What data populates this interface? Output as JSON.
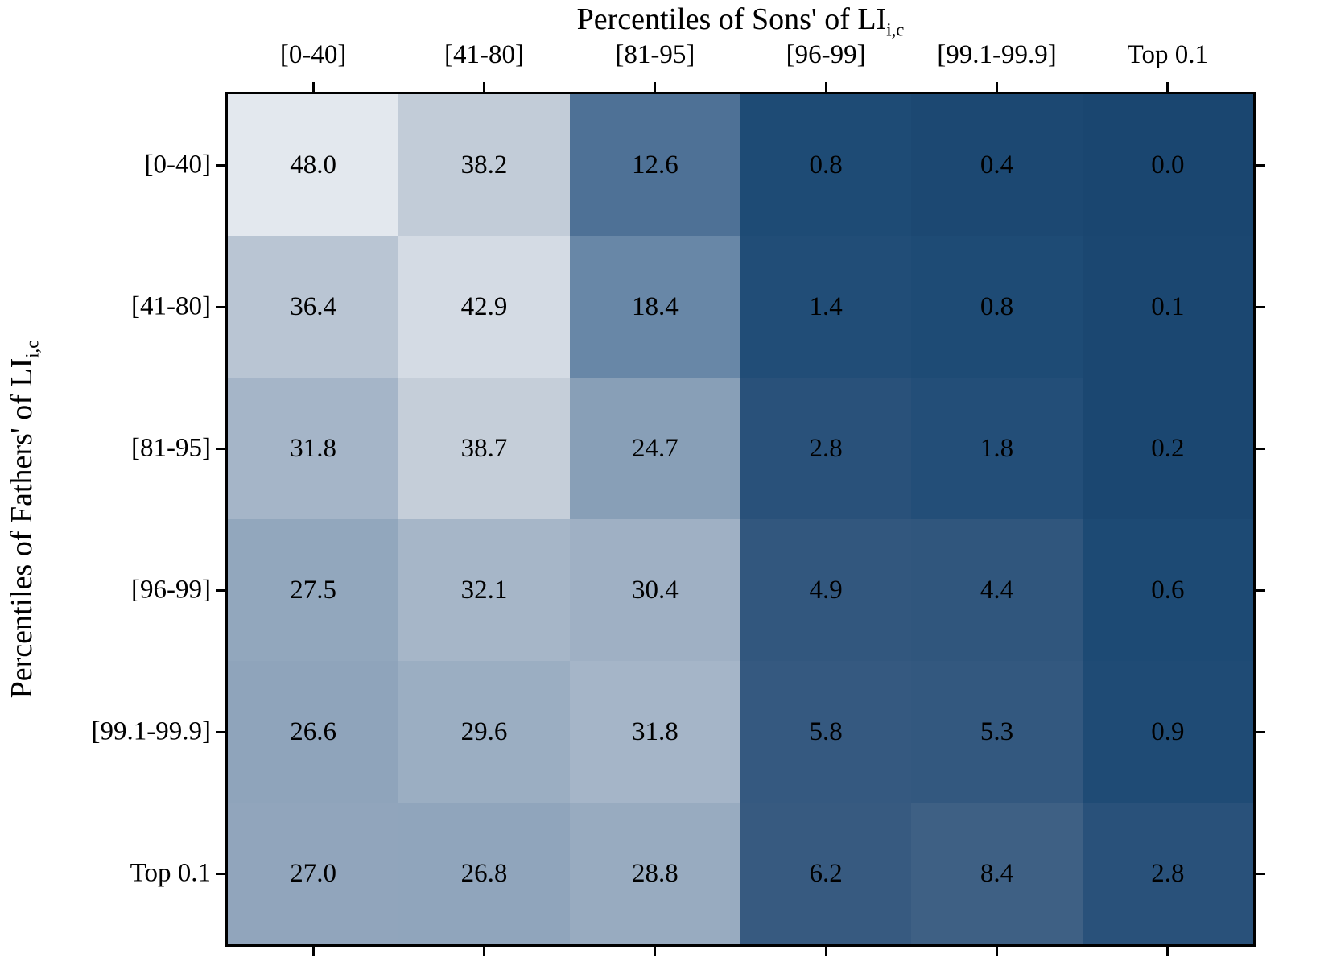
{
  "chart_data": {
    "type": "heatmap",
    "title_main": "Percentiles of Sons' of LI",
    "title_sub": "i,c",
    "ylabel_main": "Percentiles of Fathers' of LI",
    "ylabel_sub": "i,c",
    "columns": [
      "[0-40]",
      "[41-80]",
      "[81-95]",
      "[96-99]",
      "[99.1-99.9]",
      "Top 0.1"
    ],
    "rows": [
      "[0-40]",
      "[41-80]",
      "[81-95]",
      "[96-99]",
      "[99.1-99.9]",
      "Top 0.1"
    ],
    "values": [
      [
        48.0,
        38.2,
        12.6,
        0.8,
        0.4,
        0.0
      ],
      [
        36.4,
        42.9,
        18.4,
        1.4,
        0.8,
        0.1
      ],
      [
        31.8,
        38.7,
        24.7,
        2.8,
        1.8,
        0.2
      ],
      [
        27.5,
        32.1,
        30.4,
        4.9,
        4.4,
        0.6
      ],
      [
        26.6,
        29.6,
        31.8,
        5.8,
        5.3,
        0.9
      ],
      [
        27.0,
        26.8,
        28.8,
        6.2,
        8.4,
        2.8
      ]
    ],
    "cell_labels": [
      [
        "48.0",
        "38.2",
        "12.6",
        "0.8",
        "0.4",
        "0.0"
      ],
      [
        "36.4",
        "42.9",
        "18.4",
        "1.4",
        "0.8",
        "0.1"
      ],
      [
        "31.8",
        "38.7",
        "24.7",
        "2.8",
        "1.8",
        "0.2"
      ],
      [
        "27.5",
        "32.1",
        "30.4",
        "4.9",
        "4.4",
        "0.6"
      ],
      [
        "26.6",
        "29.6",
        "31.8",
        "5.8",
        "5.3",
        "0.9"
      ],
      [
        "27.0",
        "26.8",
        "28.8",
        "6.2",
        "8.4",
        "2.8"
      ]
    ],
    "value_range": [
      0,
      48
    ],
    "colormap_anchors": [
      [
        0,
        "#1a4670"
      ],
      [
        1,
        "#1f4c76"
      ],
      [
        3,
        "#2a527a"
      ],
      [
        6,
        "#365a80"
      ],
      [
        9,
        "#406185"
      ],
      [
        13,
        "#507398"
      ],
      [
        18,
        "#6686a6"
      ],
      [
        25,
        "#8aa0b8"
      ],
      [
        28,
        "#94a8be"
      ],
      [
        32,
        "#a6b6c8"
      ],
      [
        37,
        "#bcc7d4"
      ],
      [
        40,
        "#cbd3dd"
      ],
      [
        44,
        "#d8dee6"
      ],
      [
        48,
        "#e3e8ee"
      ]
    ],
    "cell_text_color": "#000000",
    "border_color": "#000000",
    "background": "#ffffff",
    "grid": false,
    "legend": "none"
  }
}
